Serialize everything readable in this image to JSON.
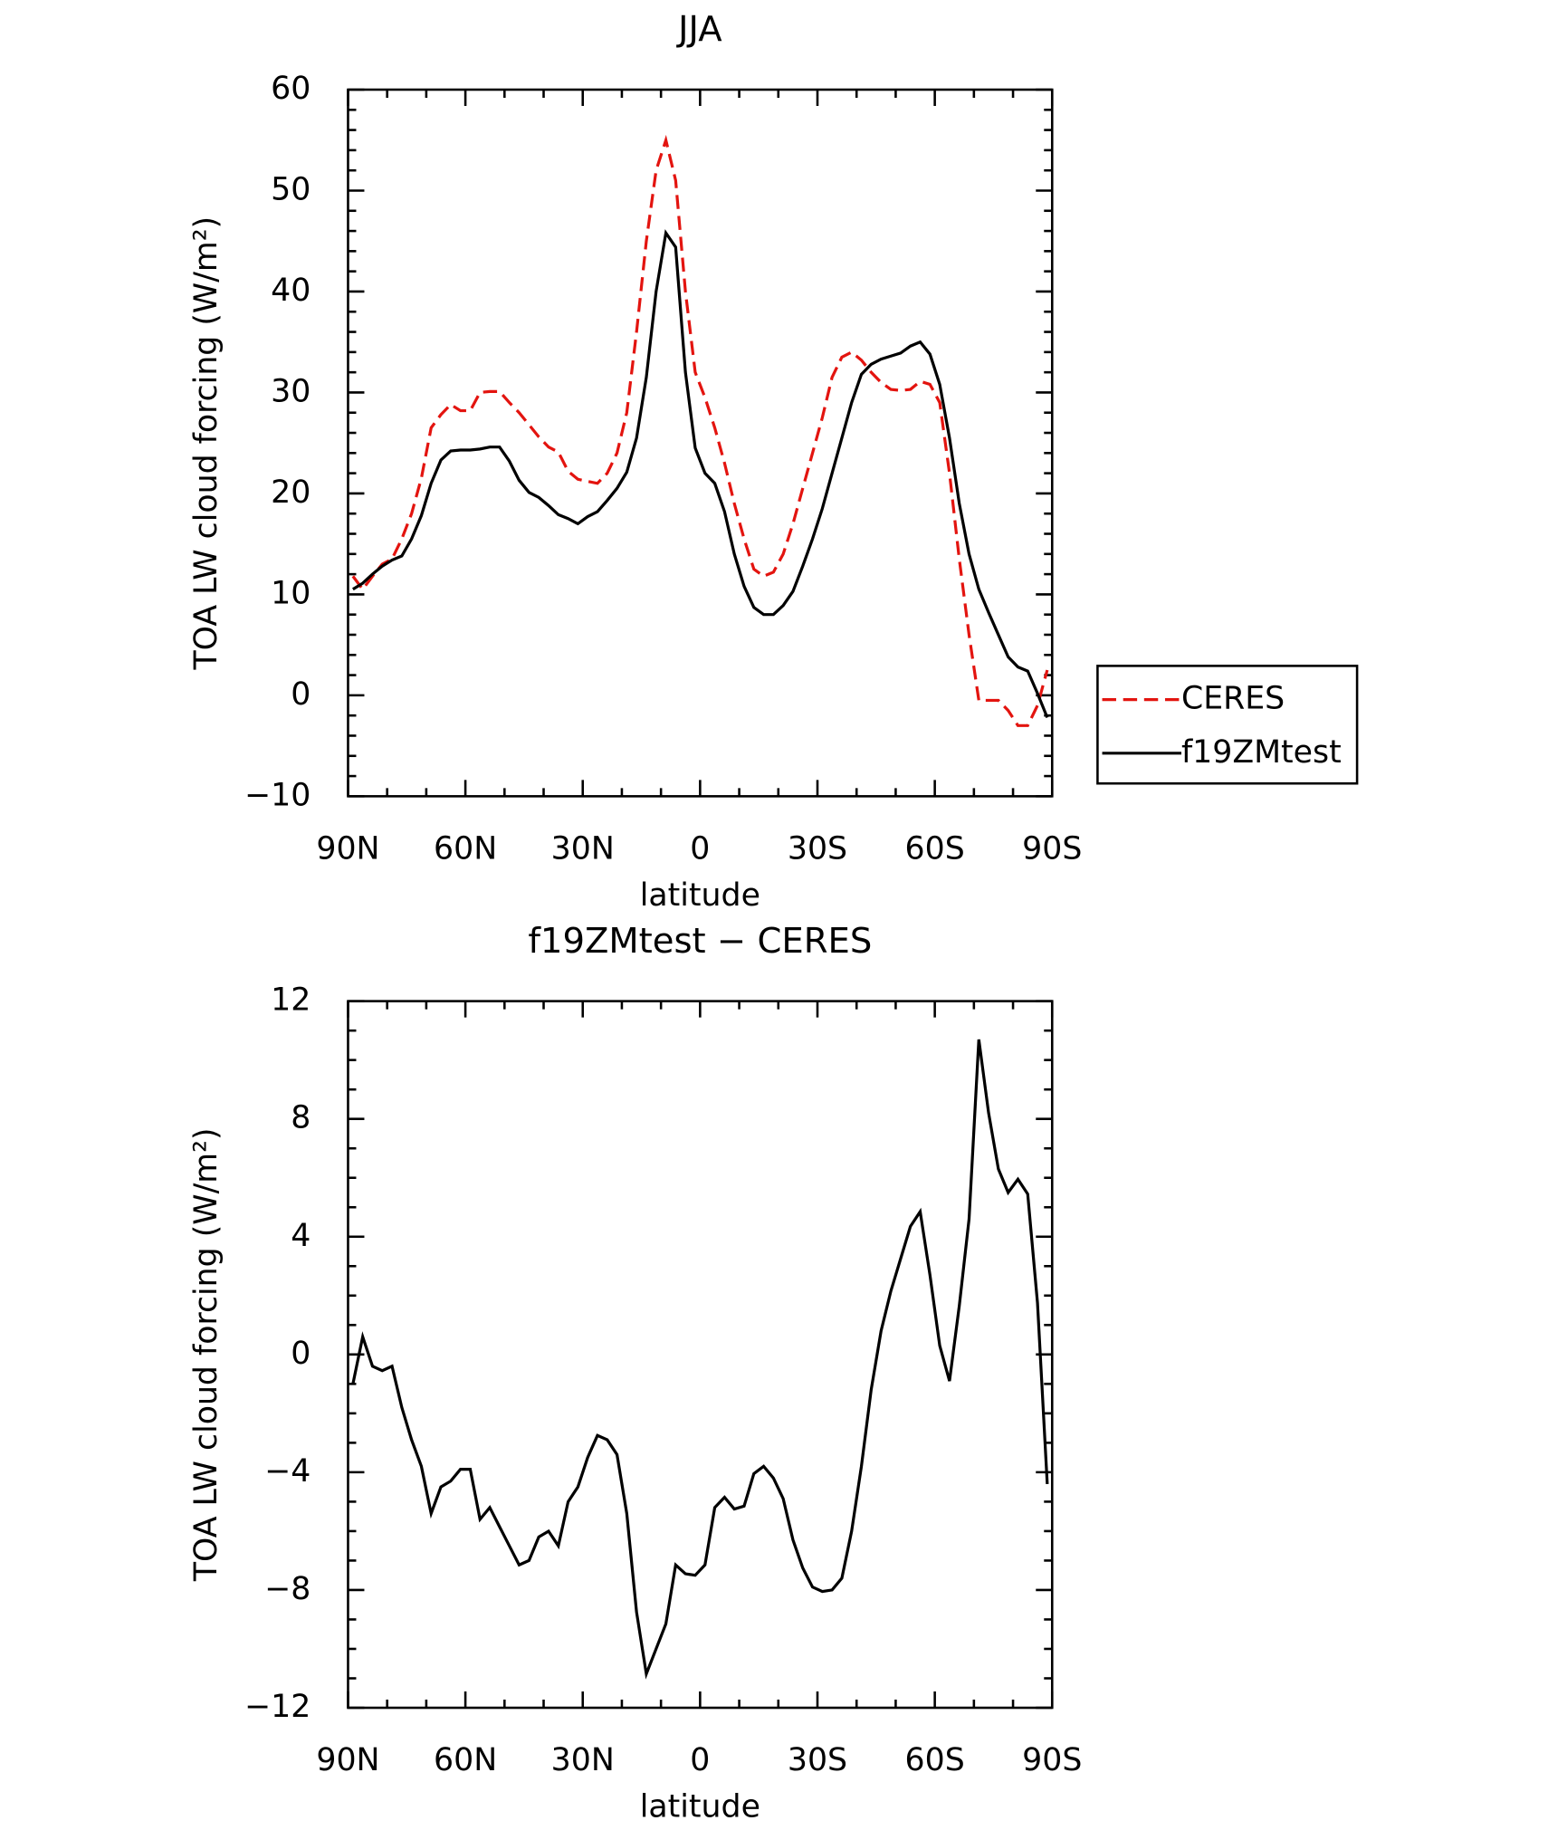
{
  "chart_data": [
    {
      "type": "line",
      "title": "JJA",
      "xlabel": "latitude",
      "ylabel": "TOA LW cloud forcing (W/m²)",
      "x": [
        88.75,
        86.25,
        83.75,
        81.25,
        78.75,
        76.25,
        73.75,
        71.25,
        68.75,
        66.25,
        63.75,
        61.25,
        58.75,
        56.25,
        53.75,
        51.25,
        48.75,
        46.25,
        43.75,
        41.25,
        38.75,
        36.25,
        33.75,
        31.25,
        28.75,
        26.25,
        23.75,
        21.25,
        18.75,
        16.25,
        13.75,
        11.25,
        8.75,
        6.25,
        3.75,
        1.25,
        -1.25,
        -3.75,
        -6.25,
        -8.75,
        -11.25,
        -13.75,
        -16.25,
        -18.75,
        -21.25,
        -23.75,
        -26.25,
        -28.75,
        -31.25,
        -33.75,
        -36.25,
        -38.75,
        -41.25,
        -43.75,
        -46.25,
        -48.75,
        -51.25,
        -53.75,
        -56.25,
        -58.75,
        -61.25,
        -63.75,
        -66.25,
        -68.75,
        -71.25,
        -73.75,
        -76.25,
        -78.75,
        -81.25,
        -83.75,
        -86.25,
        -88.75
      ],
      "xlim": [
        90,
        -90
      ],
      "xticks": [
        {
          "value": 90,
          "label": "90N"
        },
        {
          "value": 60,
          "label": "60N"
        },
        {
          "value": 30,
          "label": "30N"
        },
        0,
        {
          "value": -30,
          "label": "30S"
        },
        {
          "value": -60,
          "label": "60S"
        },
        {
          "value": -90,
          "label": "90S"
        }
      ],
      "ylim": [
        -10,
        60
      ],
      "yticks": [
        {
          "value": -10,
          "label": "−10"
        },
        0,
        10,
        20,
        30,
        40,
        50,
        60
      ],
      "legend": "outside-right",
      "series": [
        {
          "name": "CERES",
          "color": "#e3140f",
          "style": "dashed",
          "values": [
            11.8,
            10.5,
            11.8,
            13,
            13.5,
            15.5,
            18,
            21.5,
            26.5,
            27.8,
            28.8,
            28.2,
            28.2,
            30,
            30.1,
            30.1,
            29,
            28,
            26.8,
            25.6,
            24.6,
            24.1,
            22.2,
            21.4,
            21.2,
            21,
            22,
            24,
            28,
            36,
            45,
            52,
            55,
            51,
            40,
            32,
            29.5,
            26.5,
            23,
            19,
            15.5,
            12.5,
            11.8,
            12.2,
            14,
            17,
            20.5,
            24,
            27.5,
            31.5,
            33.5,
            34,
            33.2,
            32,
            31,
            30.3,
            30.2,
            30.3,
            31.1,
            30.8,
            29,
            22,
            13.5,
            6,
            -0.5,
            -0.5,
            -0.5,
            -1.5,
            -3,
            -3,
            -1,
            2.5
          ]
        },
        {
          "name": "f19ZMtest",
          "color": "#000000",
          "style": "solid",
          "values": [
            10.5,
            11.1,
            12.0,
            12.8,
            13.4,
            13.8,
            15.5,
            17.8,
            21,
            23.3,
            24.2,
            24.3,
            24.3,
            24.4,
            24.6,
            24.6,
            23.2,
            21.3,
            20.1,
            19.6,
            18.8,
            17.9,
            17.5,
            17.0,
            17.7,
            18.2,
            19.3,
            20.5,
            22.1,
            25.5,
            31.5,
            40,
            45.8,
            44.4,
            32,
            24.5,
            22,
            21,
            18.2,
            14,
            10.8,
            8.7,
            8,
            8,
            8.9,
            10.3,
            12.8,
            15.5,
            18.5,
            22,
            25.5,
            29,
            31.8,
            32.8,
            33.3,
            33.6,
            33.9,
            34.6,
            35,
            33.8,
            30.8,
            25.5,
            19,
            14,
            10.5,
            8.2,
            6,
            3.8,
            2.8,
            2.4,
            0.2,
            -2.2
          ]
        }
      ]
    },
    {
      "type": "line",
      "title": "f19ZMtest − CERES",
      "xlabel": "latitude",
      "ylabel": "TOA LW cloud forcing (W/m²)",
      "x": [
        88.75,
        86.25,
        83.75,
        81.25,
        78.75,
        76.25,
        73.75,
        71.25,
        68.75,
        66.25,
        63.75,
        61.25,
        58.75,
        56.25,
        53.75,
        51.25,
        48.75,
        46.25,
        43.75,
        41.25,
        38.75,
        36.25,
        33.75,
        31.25,
        28.75,
        26.25,
        23.75,
        21.25,
        18.75,
        16.25,
        13.75,
        11.25,
        8.75,
        6.25,
        3.75,
        1.25,
        -1.25,
        -3.75,
        -6.25,
        -8.75,
        -11.25,
        -13.75,
        -16.25,
        -18.75,
        -21.25,
        -23.75,
        -26.25,
        -28.75,
        -31.25,
        -33.75,
        -36.25,
        -38.75,
        -41.25,
        -43.75,
        -46.25,
        -48.75,
        -51.25,
        -53.75,
        -56.25,
        -58.75,
        -61.25,
        -63.75,
        -66.25,
        -68.75,
        -71.25,
        -73.75,
        -76.25,
        -78.75,
        -81.25,
        -83.75,
        -86.25,
        -88.75
      ],
      "xlim": [
        90,
        -90
      ],
      "xticks": [
        {
          "value": 90,
          "label": "90N"
        },
        {
          "value": 60,
          "label": "60N"
        },
        {
          "value": 30,
          "label": "30N"
        },
        0,
        {
          "value": -30,
          "label": "30S"
        },
        {
          "value": -60,
          "label": "60S"
        },
        {
          "value": -90,
          "label": "90S"
        }
      ],
      "ylim": [
        -12,
        12
      ],
      "yticks": [
        {
          "value": -12,
          "label": "−12"
        },
        {
          "value": -8,
          "label": "−8"
        },
        {
          "value": -4,
          "label": "−4"
        },
        0,
        4,
        8,
        12
      ],
      "series": [
        {
          "color": "#000000",
          "style": "solid",
          "values": [
            -1.0,
            0.6,
            -0.4,
            -0.55,
            -0.4,
            -1.8,
            -2.9,
            -3.8,
            -5.4,
            -4.5,
            -4.3,
            -3.9,
            -3.9,
            -5.6,
            -5.2,
            -5.85,
            -6.5,
            -7.15,
            -7.0,
            -6.2,
            -6.0,
            -6.5,
            -5.0,
            -4.5,
            -3.5,
            -2.75,
            -2.9,
            -3.4,
            -5.4,
            -8.75,
            -10.85,
            -10.0,
            -9.15,
            -7.15,
            -7.45,
            -7.5,
            -7.15,
            -5.2,
            -4.85,
            -5.25,
            -5.15,
            -4.05,
            -3.8,
            -4.2,
            -4.9,
            -6.3,
            -7.25,
            -7.9,
            -8.05,
            -8.0,
            -7.6,
            -6.0,
            -3.8,
            -1.2,
            0.8,
            2.15,
            3.25,
            4.35,
            4.85,
            2.7,
            0.3,
            -0.9,
            1.65,
            4.6,
            10.7,
            8.2,
            6.3,
            5.5,
            5.95,
            5.45,
            1.75,
            -4.4
          ]
        }
      ]
    }
  ]
}
